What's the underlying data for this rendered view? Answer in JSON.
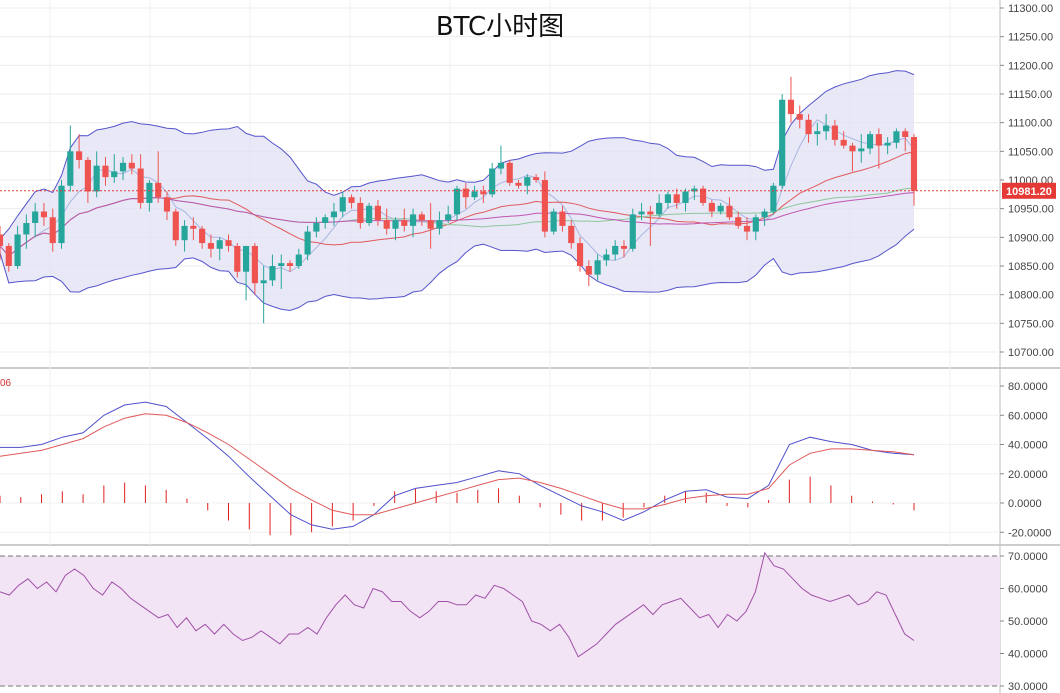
{
  "title": "BTC小时图",
  "colors": {
    "up": "#26a69a",
    "down": "#ef5350",
    "bollinger_fill": "#e0e0f4",
    "bollinger_band": "#5555cc",
    "ma_short": "#a9b6e0",
    "ma_mid": "#e05a5a",
    "ma_long": "#8fc79a",
    "ma_xlong": "#c056b0",
    "macd_dif": "#5050cc",
    "macd_dea": "#e05a5a",
    "macd_hist": "#e02020",
    "rsi_line": "#a050a8",
    "rsi_fill": "#f2e4f4",
    "last_price_tag": "#e53935"
  },
  "price_axis": {
    "ticks": [
      "11300.00",
      "11250.00",
      "11200.00",
      "11150.00",
      "11100.00",
      "11050.00",
      "11000.00",
      "10950.00",
      "10900.00",
      "10850.00",
      "10800.00",
      "10750.00",
      "10700.00"
    ],
    "last_price": "10981.20"
  },
  "macd_axis": {
    "ticks": [
      "80.0000",
      "60.0000",
      "40.0000",
      "20.0000",
      "0.0000",
      "-20.0000"
    ],
    "corner_label": "06"
  },
  "rsi_axis": {
    "ticks": [
      "70.0000",
      "60.0000",
      "50.0000",
      "40.0000",
      "30.0000"
    ]
  },
  "chart_data": [
    {
      "type": "candlestick",
      "panel": "price",
      "title": "BTC小时图",
      "ylim": [
        10680,
        11310
      ],
      "overlays": [
        "bollinger_bands",
        "moving_averages"
      ],
      "last_price": 10981.2,
      "candles": [
        [
          10905,
          10920,
          10860,
          10885
        ],
        [
          10885,
          10890,
          10840,
          10850
        ],
        [
          10850,
          10920,
          10845,
          10905
        ],
        [
          10905,
          10940,
          10880,
          10925
        ],
        [
          10925,
          10960,
          10900,
          10945
        ],
        [
          10945,
          10960,
          10920,
          10935
        ],
        [
          10935,
          10950,
          10875,
          10890
        ],
        [
          10890,
          11000,
          10880,
          10990
        ],
        [
          10990,
          11095,
          10980,
          11050
        ],
        [
          11050,
          11080,
          11020,
          11035
        ],
        [
          11035,
          11040,
          10960,
          10980
        ],
        [
          10980,
          11050,
          10970,
          11025
        ],
        [
          11025,
          11040,
          10990,
          11005
        ],
        [
          11005,
          11045,
          10995,
          11015
        ],
        [
          11015,
          11040,
          11000,
          11030
        ],
        [
          11030,
          11045,
          11010,
          11020
        ],
        [
          11020,
          11045,
          10950,
          10960
        ],
        [
          10960,
          11000,
          10945,
          10995
        ],
        [
          10995,
          11050,
          10960,
          10970
        ],
        [
          10970,
          10980,
          10930,
          10945
        ],
        [
          10945,
          10950,
          10885,
          10895
        ],
        [
          10895,
          10930,
          10875,
          10920
        ],
        [
          10920,
          10935,
          10895,
          10915
        ],
        [
          10915,
          10920,
          10880,
          10890
        ],
        [
          10890,
          10905,
          10865,
          10880
        ],
        [
          10880,
          10900,
          10860,
          10895
        ],
        [
          10895,
          10905,
          10875,
          10885
        ],
        [
          10885,
          10890,
          10830,
          10840
        ],
        [
          10840,
          10880,
          10790,
          10885
        ],
        [
          10885,
          10890,
          10800,
          10820
        ],
        [
          10820,
          10850,
          10750,
          10825
        ],
        [
          10825,
          10870,
          10815,
          10850
        ],
        [
          10850,
          10870,
          10810,
          10855
        ],
        [
          10855,
          10860,
          10840,
          10850
        ],
        [
          10850,
          10880,
          10845,
          10870
        ],
        [
          10870,
          10920,
          10860,
          10910
        ],
        [
          10910,
          10935,
          10900,
          10925
        ],
        [
          10925,
          10940,
          10915,
          10935
        ],
        [
          10935,
          10960,
          10920,
          10945
        ],
        [
          10945,
          10980,
          10935,
          10970
        ],
        [
          10970,
          10975,
          10950,
          10960
        ],
        [
          10960,
          10970,
          10915,
          10925
        ],
        [
          10925,
          10960,
          10920,
          10955
        ],
        [
          10955,
          10965,
          10920,
          10930
        ],
        [
          10930,
          10950,
          10905,
          10915
        ],
        [
          10915,
          10935,
          10895,
          10930
        ],
        [
          10930,
          10950,
          10910,
          10920
        ],
        [
          10920,
          10950,
          10900,
          10940
        ],
        [
          10940,
          10945,
          10920,
          10930
        ],
        [
          10930,
          10960,
          10880,
          10915
        ],
        [
          10915,
          10945,
          10905,
          10930
        ],
        [
          10930,
          10955,
          10925,
          10940
        ],
        [
          10940,
          10990,
          10930,
          10985
        ],
        [
          10985,
          10995,
          10950,
          10970
        ],
        [
          10970,
          10990,
          10965,
          10980
        ],
        [
          10980,
          10990,
          10960,
          10975
        ],
        [
          10975,
          11030,
          10970,
          11020
        ],
        [
          11020,
          11060,
          11010,
          11030
        ],
        [
          11030,
          11035,
          10990,
          10995
        ],
        [
          10995,
          11000,
          10985,
          10990
        ],
        [
          10990,
          11010,
          10975,
          11005
        ],
        [
          11005,
          11010,
          10995,
          11000
        ],
        [
          11000,
          11015,
          10900,
          10910
        ],
        [
          10910,
          10950,
          10905,
          10945
        ],
        [
          10945,
          10955,
          10910,
          10920
        ],
        [
          10920,
          10930,
          10880,
          10890
        ],
        [
          10890,
          10900,
          10840,
          10850
        ],
        [
          10850,
          10860,
          10815,
          10835
        ],
        [
          10835,
          10870,
          10825,
          10860
        ],
        [
          10860,
          10880,
          10850,
          10870
        ],
        [
          10870,
          10895,
          10860,
          10885
        ],
        [
          10885,
          10895,
          10865,
          10880
        ],
        [
          10880,
          10950,
          10875,
          10940
        ],
        [
          10940,
          10960,
          10930,
          10945
        ],
        [
          10945,
          10955,
          10885,
          10940
        ],
        [
          10940,
          10975,
          10935,
          10960
        ],
        [
          10960,
          10980,
          10950,
          10975
        ],
        [
          10975,
          10985,
          10950,
          10960
        ],
        [
          10960,
          10985,
          10945,
          10980
        ],
        [
          10980,
          10990,
          10965,
          10985
        ],
        [
          10985,
          10990,
          10955,
          10960
        ],
        [
          10960,
          10965,
          10935,
          10945
        ],
        [
          10945,
          10960,
          10940,
          10955
        ],
        [
          10955,
          10970,
          10930,
          10935
        ],
        [
          10935,
          10945,
          10915,
          10920
        ],
        [
          10920,
          10935,
          10895,
          10910
        ],
        [
          10910,
          10940,
          10895,
          10935
        ],
        [
          10935,
          10950,
          10920,
          10945
        ],
        [
          10945,
          10995,
          10940,
          10990
        ],
        [
          10990,
          11150,
          10985,
          11140
        ],
        [
          11140,
          11180,
          11100,
          11115
        ],
        [
          11115,
          11130,
          11090,
          11105
        ],
        [
          11105,
          11115,
          11065,
          11080
        ],
        [
          11080,
          11100,
          11060,
          11085
        ],
        [
          11085,
          11115,
          11070,
          11095
        ],
        [
          11095,
          11105,
          11060,
          11070
        ],
        [
          11070,
          11085,
          11055,
          11060
        ],
        [
          11060,
          11065,
          11015,
          11050
        ],
        [
          11050,
          11080,
          11030,
          11055
        ],
        [
          11055,
          11085,
          11045,
          11080
        ],
        [
          11080,
          11090,
          11020,
          11060
        ],
        [
          11060,
          11075,
          11045,
          11065
        ],
        [
          11065,
          11090,
          11055,
          11085
        ],
        [
          11085,
          11090,
          11050,
          11075
        ],
        [
          11075,
          11080,
          10955,
          10981.2
        ]
      ]
    },
    {
      "type": "line",
      "panel": "macd",
      "ylim": [
        -28,
        90
      ],
      "series": [
        {
          "id": "dif",
          "values": [
            38,
            38,
            40,
            45,
            48,
            60,
            67,
            69,
            66,
            55,
            44,
            32,
            18,
            5,
            -8,
            -15,
            -18,
            -16,
            -8,
            5,
            10,
            12,
            14,
            18,
            22,
            20,
            12,
            5,
            -2,
            -6,
            -12,
            -6,
            2,
            8,
            9,
            4,
            3,
            12,
            40,
            45,
            42,
            40,
            36,
            34,
            33
          ]
        },
        {
          "id": "dea",
          "values": [
            32,
            34,
            36,
            40,
            44,
            52,
            58,
            61,
            60,
            55,
            48,
            40,
            30,
            20,
            10,
            2,
            -5,
            -8,
            -8,
            -4,
            0,
            4,
            8,
            12,
            16,
            17,
            14,
            10,
            5,
            0,
            -4,
            -4,
            -1,
            3,
            5,
            6,
            6,
            10,
            26,
            34,
            37,
            37,
            36,
            35,
            33
          ]
        },
        {
          "id": "histogram",
          "type": "bar",
          "values": [
            5,
            4,
            6,
            8,
            6,
            12,
            14,
            12,
            9,
            3,
            -5,
            -12,
            -18,
            -22,
            -22,
            -20,
            -16,
            -12,
            -2,
            8,
            10,
            8,
            7,
            9,
            10,
            5,
            -3,
            -8,
            -12,
            -12,
            -10,
            -3,
            5,
            8,
            7,
            -2,
            -3,
            2,
            16,
            18,
            12,
            5,
            1,
            -1,
            -5
          ]
        }
      ]
    },
    {
      "type": "line",
      "panel": "rsi",
      "ylim": [
        30,
        72
      ],
      "series": [
        {
          "id": "rsi",
          "values": [
            59,
            58,
            61,
            63,
            60,
            62,
            59,
            64,
            66,
            64,
            60,
            58,
            62,
            60,
            57,
            55,
            53,
            51,
            52,
            48,
            51,
            47,
            49,
            46,
            49,
            46,
            44,
            45,
            47,
            45,
            43,
            46,
            46,
            48,
            46,
            51,
            55,
            58,
            55,
            54,
            60,
            59,
            56,
            56,
            53,
            51,
            53,
            56,
            56,
            55,
            55,
            58,
            57,
            61,
            60,
            58,
            56,
            50,
            49,
            47,
            49,
            45,
            39,
            41,
            43,
            46,
            49,
            51,
            53,
            55,
            52,
            55,
            56,
            57,
            54,
            51,
            52,
            48,
            52,
            50,
            53,
            59,
            71,
            67,
            66,
            63,
            60,
            58,
            57,
            56,
            57,
            58,
            55,
            56,
            59,
            58,
            52,
            46,
            44
          ]
        }
      ],
      "reference_lines": [
        70,
        30
      ]
    }
  ]
}
